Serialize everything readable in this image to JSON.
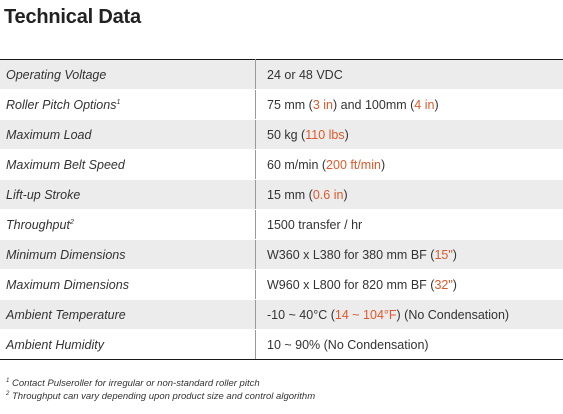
{
  "title": "Technical Data",
  "rows": [
    {
      "label": "Operating Voltage",
      "label_sup": "",
      "value": [
        {
          "t": "24 or 48 VDC",
          "c": ""
        }
      ]
    },
    {
      "label": "Roller Pitch Options",
      "label_sup": "1",
      "value": [
        {
          "t": "75 mm (",
          "c": ""
        },
        {
          "t": "3 in",
          "c": "orange"
        },
        {
          "t": ")  and 100mm (",
          "c": ""
        },
        {
          "t": "4 in",
          "c": "orange"
        },
        {
          "t": ")",
          "c": ""
        }
      ]
    },
    {
      "label": "Maximum Load",
      "label_sup": "",
      "value": [
        {
          "t": "50 kg (",
          "c": ""
        },
        {
          "t": "110 lbs",
          "c": "orange"
        },
        {
          "t": ")",
          "c": ""
        }
      ]
    },
    {
      "label": "Maximum Belt Speed",
      "label_sup": "",
      "value": [
        {
          "t": "60 m/min (",
          "c": ""
        },
        {
          "t": "200 ft/min",
          "c": "orange"
        },
        {
          "t": ")",
          "c": ""
        }
      ]
    },
    {
      "label": "Lift-up Stroke",
      "label_sup": "",
      "value": [
        {
          "t": "15 mm (",
          "c": ""
        },
        {
          "t": "0.6 in",
          "c": "orange"
        },
        {
          "t": ")",
          "c": ""
        }
      ]
    },
    {
      "label": "Throughput",
      "label_sup": "2",
      "value": [
        {
          "t": "1500 transfer / hr",
          "c": ""
        }
      ]
    },
    {
      "label": "Minimum Dimensions",
      "label_sup": "",
      "value": [
        {
          "t": "W360 x L380 for 380 mm BF (",
          "c": ""
        },
        {
          "t": "15\"",
          "c": "orange"
        },
        {
          "t": ")",
          "c": ""
        }
      ]
    },
    {
      "label": "Maximum Dimensions",
      "label_sup": "",
      "value": [
        {
          "t": "W960 x L800 for 820 mm BF (",
          "c": ""
        },
        {
          "t": "32\"",
          "c": "orange"
        },
        {
          "t": ")",
          "c": ""
        }
      ]
    },
    {
      "label": "Ambient Temperature",
      "label_sup": "",
      "value": [
        {
          "t": "-10 ~ 40°C (",
          "c": ""
        },
        {
          "t": "14 ~ 104°F",
          "c": "orange"
        },
        {
          "t": ") (No Condensation)",
          "c": ""
        }
      ]
    },
    {
      "label": "Ambient Humidity",
      "label_sup": "",
      "value": [
        {
          "t": "10 ~ 90% (No Condensation)",
          "c": ""
        }
      ]
    }
  ],
  "footnotes": [
    {
      "sup": "1",
      "text": " Contact Pulseroller for irregular or non-standard roller pitch"
    },
    {
      "sup": "2",
      "text": " Throughput can vary depending upon product size and control algorithm"
    }
  ],
  "colors": {
    "accent": "#e0592a",
    "stripe": "#ececec",
    "text": "#333333"
  }
}
